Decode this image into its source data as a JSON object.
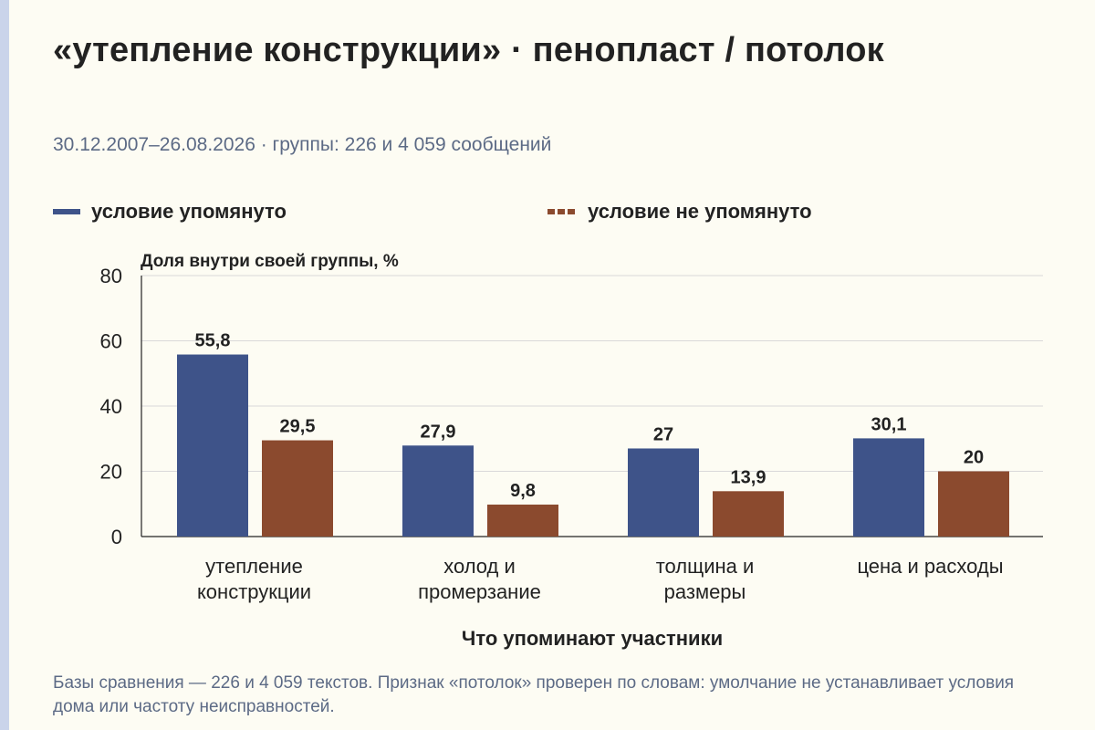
{
  "title": "«утепление конструкции» · пенопласт / потолок",
  "subtitle": "30.12.2007–26.08.2026 · группы: 226 и 4 059 сообщений",
  "footnote": "Базы сравнения — 226 и 4 059 текстов. Признак «потолок» проверен по словам: умолчание не устанавливает условия дома или частоту неисправностей.",
  "colors": {
    "mentioned": "#3e5389",
    "not_mentioned": "#8b4a2e",
    "grid": "#d9d9d9",
    "axis": "#222222"
  },
  "chart_data": {
    "type": "bar",
    "ylabel": "Доля внутри своей группы, %",
    "xlabel": "Что упоминают участники",
    "ylim": [
      0,
      80
    ],
    "yticks": [
      "0",
      "20",
      "40",
      "60",
      "80"
    ],
    "grid": true,
    "legend_position": "top",
    "categories": [
      [
        "утепление",
        "конструкции"
      ],
      [
        "холод и",
        "промерзание"
      ],
      [
        "толщина и",
        "размеры"
      ],
      [
        "цена и расходы"
      ]
    ],
    "series": [
      {
        "name": "условие упомянуто",
        "values": [
          55.8,
          27.9,
          27,
          30.1
        ],
        "labels": [
          "55,8",
          "27,9",
          "27",
          "30,1"
        ]
      },
      {
        "name": "условие не упомянуто",
        "values": [
          29.5,
          9.8,
          13.9,
          20
        ],
        "labels": [
          "29,5",
          "9,8",
          "13,9",
          "20"
        ]
      }
    ]
  }
}
